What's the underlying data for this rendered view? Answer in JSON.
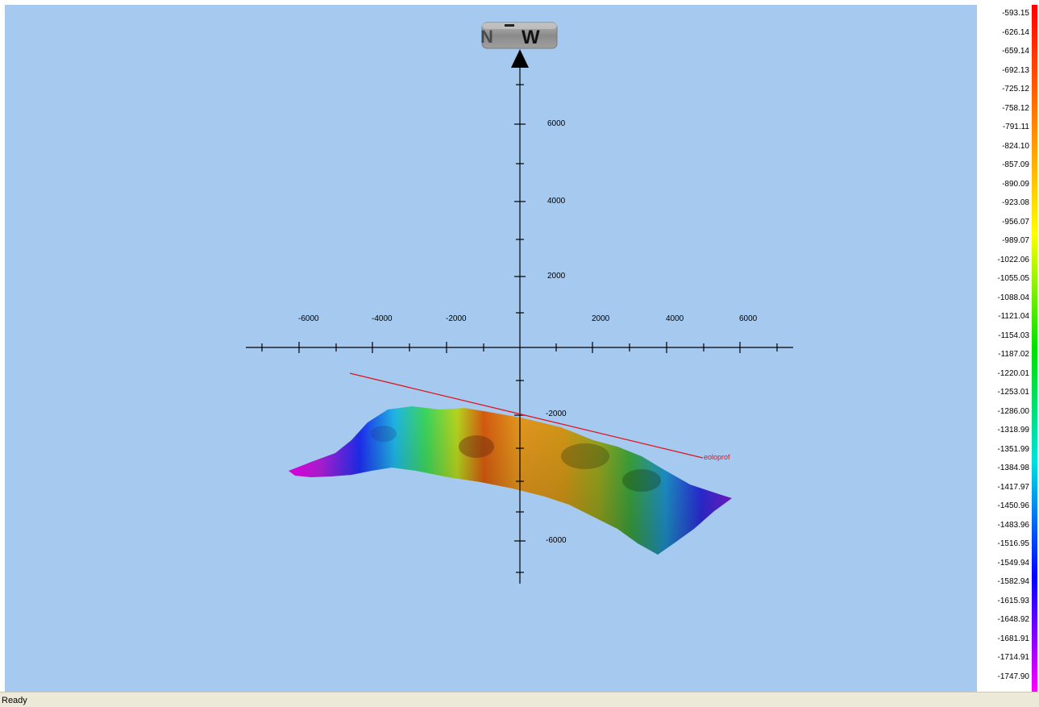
{
  "compass": {
    "letter": "W",
    "partial_left": "N"
  },
  "axes": {
    "x_labels": [
      "-6000",
      "-4000",
      "-2000",
      "2000",
      "4000",
      "6000"
    ],
    "y_labels": [
      "6000",
      "4000",
      "2000",
      "-2000",
      "-6000"
    ]
  },
  "profile_line": {
    "label": "eoloprof",
    "color": "#e0141e"
  },
  "depth_legend": {
    "values": [
      "-593.15",
      "-626.14",
      "-659.14",
      "-692.13",
      "-725.12",
      "-758.12",
      "-791.11",
      "-824.10",
      "-857.09",
      "-890.09",
      "-923.08",
      "-956.07",
      "-989.07",
      "-1022.06",
      "-1055.05",
      "-1088.04",
      "-1121.04",
      "-1154.03",
      "-1187.02",
      "-1220.01",
      "-1253.01",
      "-1286.00",
      "-1318.99",
      "-1351.99",
      "-1384.98",
      "-1417.97",
      "-1450.96",
      "-1483.96",
      "-1516.95",
      "-1549.94",
      "-1582.94",
      "-1615.93",
      "-1648.92",
      "-1681.91",
      "-1714.91",
      "-1747.90"
    ],
    "colors": [
      "#ff0000",
      "#ff8000",
      "#ffff00",
      "#00e000",
      "#00e0e0",
      "#0000ff",
      "#ff00ff"
    ]
  },
  "status": {
    "text": "Ready"
  }
}
